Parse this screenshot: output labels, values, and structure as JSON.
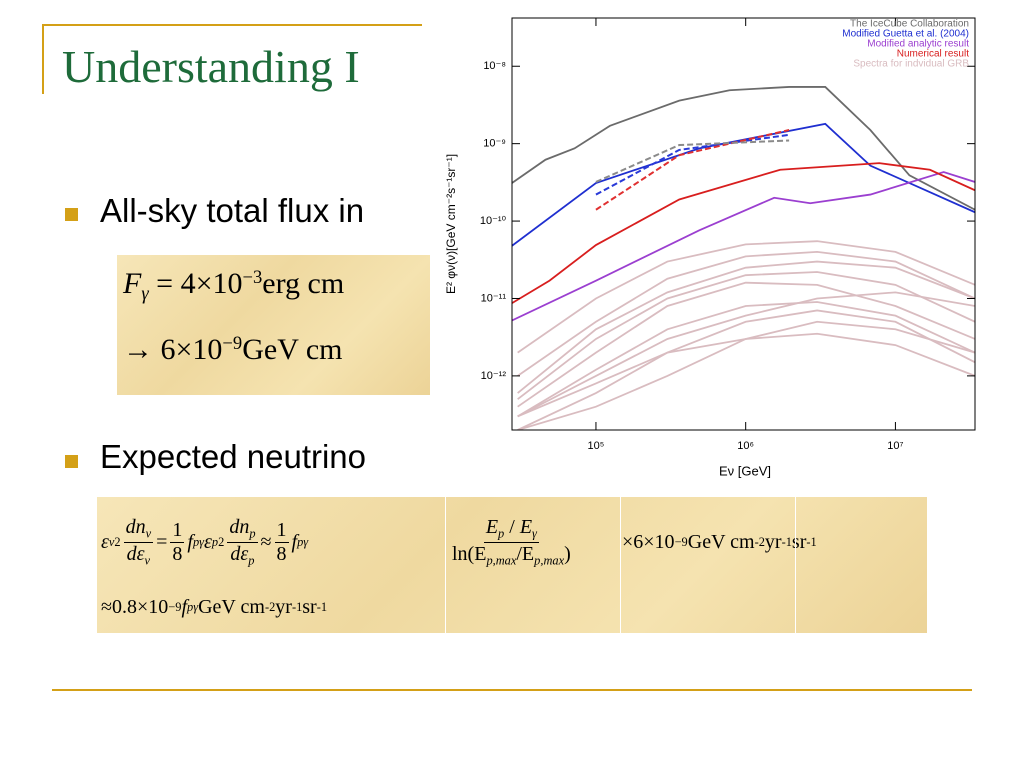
{
  "title": "Understanding I",
  "bullets": [
    "All-sky total flux in",
    "Expected neutrino"
  ],
  "formula1": [
    [
      {
        "i": "F"
      },
      {
        "sub": "γ"
      },
      " = 4×10",
      {
        "sup": "−3"
      },
      "erg cm"
    ],
    [
      "→ 6×10",
      {
        "sup": "−9"
      },
      "GeV cm"
    ]
  ],
  "formula2": {
    "row1": [
      [
        {
          "i": "ε"
        },
        {
          "sub": "ν"
        },
        {
          "sup": "2"
        },
        {
          "num": [
            {
              "i": "dn"
            },
            {
              "sub": "ν"
            }
          ],
          "den": [
            {
              "i": "dε"
            },
            {
              "sub": "ν"
            }
          ]
        },
        " = ",
        {
          "num": [
            "1"
          ],
          "den": [
            "8"
          ]
        },
        {
          "i": " f"
        },
        {
          "sub": "pγ"
        },
        {
          "i": "ε"
        },
        {
          "sub": "p"
        },
        {
          "sup": "2"
        },
        {
          "num": [
            {
              "i": "dn"
            },
            {
              "sub": "p"
            }
          ],
          "den": [
            {
              "i": "dε"
            },
            {
              "sub": "p"
            }
          ]
        },
        " ≈ ",
        {
          "num": [
            "1"
          ],
          "den": [
            "8"
          ]
        },
        {
          "i": " f"
        },
        {
          "sub": "pγ"
        }
      ],
      [
        {
          "num": [
            {
              "i": "E"
            },
            {
              "sub": "p"
            },
            " / ",
            {
              "i": "E"
            },
            {
              "sub": "γ"
            }
          ],
          "den": [
            "ln(E",
            {
              "sub": "p,max"
            },
            "/E",
            {
              "sub": "p,max"
            },
            ")"
          ]
        }
      ],
      [
        "×6×10",
        {
          "sup": "−9"
        },
        "GeV cm",
        {
          "sup": "-2"
        },
        " yr",
        {
          "sup": "-1"
        },
        " sr",
        {
          "sup": "-1"
        }
      ]
    ],
    "row2": [
      "≈0.8×10",
      {
        "sup": "−9"
      },
      {
        "i": " f"
      },
      {
        "sub": "pγ"
      },
      "GeV cm",
      {
        "sup": "-2"
      },
      " yr",
      {
        "sup": "-1"
      },
      " sr",
      {
        "sup": "-1"
      }
    ]
  },
  "chart_data": {
    "type": "line",
    "xlabel": "Eν [GeV]",
    "ylabel": "E² φν(ν)[GeV cm⁻²s⁻¹sr⁻¹]",
    "xlog": true,
    "ylog": true,
    "xlim": [
      27500,
      34000000
    ],
    "ylim": [
      2e-13,
      4.2e-08
    ],
    "xticks": [
      {
        "value": 100000,
        "label": "10⁵"
      },
      {
        "value": 1000000,
        "label": "10⁶"
      },
      {
        "value": 10000000,
        "label": "10⁷"
      }
    ],
    "yticks": [
      {
        "value": 1e-12,
        "label": "10⁻¹²"
      },
      {
        "value": 1e-11,
        "label": "10⁻¹¹"
      },
      {
        "value": 1e-10,
        "label": "10⁻¹⁰"
      },
      {
        "value": 1e-09,
        "label": "10⁻⁹"
      },
      {
        "value": 1e-08,
        "label": "10⁻⁸"
      }
    ],
    "legend": "upper right",
    "series": [
      {
        "name": "The IceCube Collaboration",
        "color": "#6b6b6b",
        "x": [
          27500,
          46000,
          72000,
          124000,
          360000,
          780000,
          1950000,
          3400000,
          6800000,
          12400000,
          34000000
        ],
        "values": [
          3.1e-10,
          6.2e-10,
          8.7e-10,
          1.7e-09,
          3.6e-09,
          4.9e-09,
          5.4e-09,
          5.4e-09,
          1.5e-09,
          3.9e-10,
          1.4e-10
        ]
      },
      {
        "name": "Modified Guetta et al. (2004)",
        "color": "#1f2fd0",
        "x": [
          27500,
          100000,
          490000,
          3400000,
          6800000,
          34000000
        ],
        "values": [
          4.8e-11,
          3.1e-10,
          8.7e-10,
          1.8e-09,
          5.2e-10,
          1.3e-10
        ]
      },
      {
        "name": "Modified analytic result",
        "color": "#9b3fd0",
        "x": [
          27500,
          100000,
          490000,
          1550000,
          2700000,
          6800000,
          21000000,
          34000000
        ],
        "values": [
          5.2e-12,
          1.7e-11,
          7.6e-11,
          2e-10,
          1.7e-10,
          2.2e-10,
          4.3e-10,
          3.2e-10
        ]
      },
      {
        "name": "Numerical result",
        "color": "#d81e1e",
        "x": [
          27500,
          49000,
          100000,
          360000,
          1700000,
          7800000,
          17000000,
          34000000
        ],
        "values": [
          8.7e-12,
          1.7e-11,
          4.9e-11,
          1.9e-10,
          4.6e-10,
          5.6e-10,
          4.6e-10,
          2.5e-10
        ]
      },
      {
        "color": "#2a3ad8",
        "dashed": true,
        "x": [
          100000,
          360000,
          1950000
        ],
        "values": [
          2.2e-10,
          8.3e-10,
          1.3e-09
        ]
      },
      {
        "color": "#e03030",
        "dashed": true,
        "x": [
          100000,
          360000,
          1950000
        ],
        "values": [
          1.4e-10,
          7.1e-10,
          1.5e-09
        ]
      },
      {
        "color": "#8a8a8a",
        "dashed": true,
        "x": [
          100000,
          360000,
          1950000
        ],
        "values": [
          3.2e-10,
          9.6e-10,
          1.1e-09
        ]
      }
    ],
    "grb": {
      "name": "Spectra for indvidual GRB",
      "color": "#d9bcc0",
      "x": [
        30000,
        100000,
        300000,
        1000000,
        3000000,
        10000000,
        34000000
      ],
      "curves": [
        [
          3e-13,
          1.2e-12,
          4e-12,
          8e-12,
          9e-12,
          6e-12,
          2e-12
        ],
        [
          2e-13,
          6e-13,
          2e-12,
          5e-12,
          7e-12,
          5e-12,
          1.5e-12
        ],
        [
          5e-13,
          3e-12,
          1e-11,
          2e-11,
          2.2e-11,
          1.5e-11,
          5e-12
        ],
        [
          1e-12,
          5e-12,
          1.8e-11,
          3.5e-11,
          4e-11,
          3e-11,
          1e-11
        ],
        [
          3e-13,
          1e-12,
          3e-12,
          6e-12,
          1e-11,
          1.2e-11,
          8e-12
        ],
        [
          2e-13,
          4e-13,
          1e-12,
          3e-12,
          5e-12,
          4e-12,
          2e-12
        ],
        [
          4e-13,
          2e-12,
          8e-12,
          1.6e-11,
          1.5e-11,
          8e-12,
          3e-12
        ],
        [
          2e-12,
          1e-11,
          3e-11,
          5e-11,
          5.5e-11,
          4e-11,
          1.5e-11
        ],
        [
          3e-13,
          8e-13,
          2e-12,
          3e-12,
          3.5e-12,
          2.5e-12,
          1e-12
        ],
        [
          6e-13,
          4e-12,
          1.2e-11,
          2.5e-11,
          3e-11,
          2.5e-11,
          1e-11
        ]
      ]
    }
  }
}
